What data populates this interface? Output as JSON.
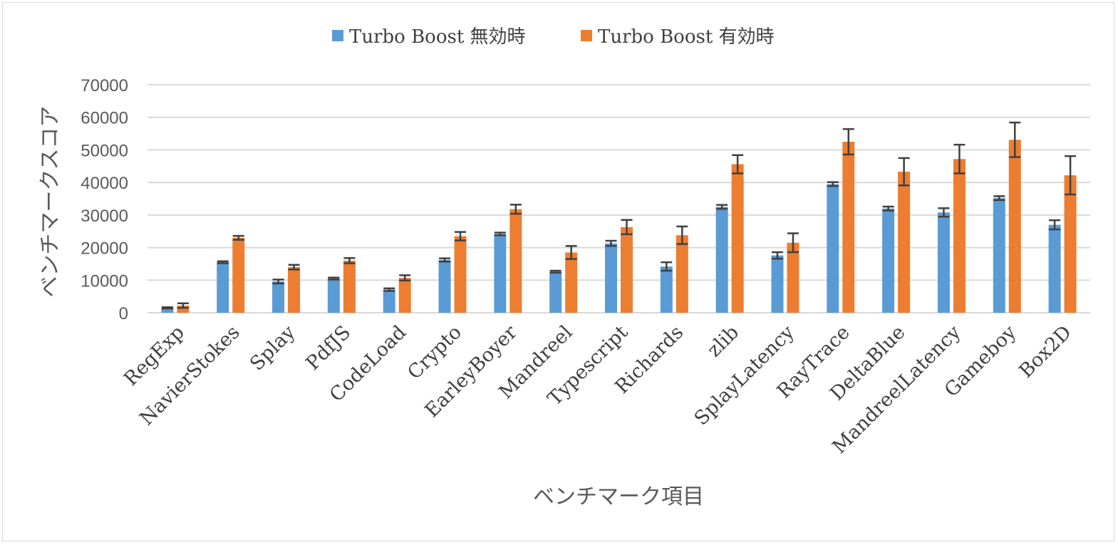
{
  "chart_data": {
    "type": "bar",
    "title": "",
    "xlabel": "ベンチマーク項目",
    "ylabel": "ベンチマークスコア",
    "ylim": [
      0,
      70000
    ],
    "yticks": [
      0,
      10000,
      20000,
      30000,
      40000,
      50000,
      60000,
      70000
    ],
    "grid": true,
    "legend_position": "top",
    "error_bars": true,
    "categories": [
      "RegExp",
      "NavierStokes",
      "Splay",
      "PdfJS",
      "CodeLoad",
      "Crypto",
      "EarleyBoyer",
      "Mandreel",
      "Typescript",
      "Richards",
      "zlib",
      "SplayLatency",
      "RayTrace",
      "DeltaBlue",
      "MandreelLatency",
      "Gameboy",
      "Box2D"
    ],
    "series": [
      {
        "name": "Turbo Boost 無効時",
        "color": "#5b9bd5",
        "values": [
          1500,
          15500,
          9600,
          10500,
          7100,
          16200,
          24200,
          12600,
          21300,
          14200,
          32500,
          17600,
          39500,
          32000,
          30800,
          35200,
          27000
        ],
        "errors": [
          200,
          300,
          600,
          300,
          400,
          500,
          400,
          300,
          800,
          1300,
          600,
          1000,
          600,
          600,
          1300,
          600,
          1400
        ]
      },
      {
        "name": "Turbo Boost 有効時",
        "color": "#ed7d31",
        "values": [
          2200,
          23000,
          14000,
          16000,
          10700,
          23500,
          31800,
          18500,
          26300,
          23800,
          45600,
          21500,
          52500,
          43300,
          47200,
          53100,
          42200
        ],
        "errors": [
          700,
          600,
          700,
          800,
          800,
          1300,
          1400,
          2000,
          2200,
          2700,
          2800,
          2900,
          3900,
          4200,
          4400,
          5300,
          5900
        ]
      }
    ]
  }
}
